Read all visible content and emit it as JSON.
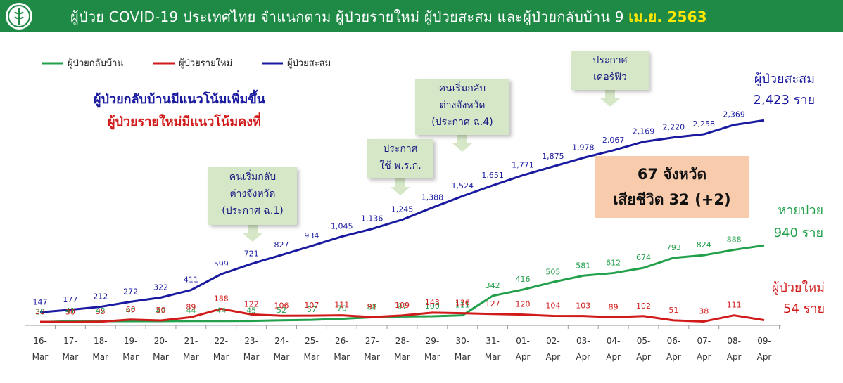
{
  "header": {
    "title_main": "ผู้ป่วย COVID-19 ประเทศไทย จำแนกตาม ผู้ป่วยรายใหม่ ผู้ป่วยสะสม  และผู้ป่วยกลับบ้าน   9",
    "title_date": "เม.ย. 2563",
    "bg_color": "#1f8a46",
    "logo_icon": "ministry-of-public-health-seal"
  },
  "messages": {
    "line1": "ผู้ป่วยกลับบ้านมีแนวโน้มเพิ่มขึ้น",
    "line2": "ผู้ป่วยรายใหม่มีแนวโน้มคงที่"
  },
  "callouts": {
    "c1": [
      "คนเริ่มกลับ",
      "ต่างจังหวัด",
      "(ประกาศ ฉ.1)"
    ],
    "c2": [
      "ประกาศ",
      "ใช้ พ.ร.ก."
    ],
    "c3": [
      "คนเริ่มกลับ",
      "ต่างจังหวัด",
      "(ประกาศ ฉ.4)"
    ],
    "c4": [
      "ประกาศ",
      "เคอร์ฟิว"
    ]
  },
  "stat_box": {
    "provinces": "67 จังหวัด",
    "deaths": "เสียชีวิต 32 (+2)"
  },
  "edge_labels": {
    "cumulative_title": "ผู้ป่วยสะสม",
    "cumulative_value": "2,423 ราย",
    "recovered_title": "หายป่วย",
    "recovered_value": "940 ราย",
    "new_title": "ผู้ป่วยใหม่",
    "new_value": "54 ราย"
  },
  "chart_data": {
    "type": "line",
    "categories": [
      "16-Mar",
      "17-Mar",
      "18-Mar",
      "19-Mar",
      "20-Mar",
      "21-Mar",
      "22-Mar",
      "23-Mar",
      "24-Mar",
      "25-Mar",
      "26-Mar",
      "27-Mar",
      "28-Mar",
      "29-Mar",
      "30-Mar",
      "31-Mar",
      "01-Apr",
      "02-Apr",
      "03-Apr",
      "04-Apr",
      "05-Apr",
      "06-Apr",
      "07-Apr",
      "08-Apr",
      "09-Apr"
    ],
    "series": [
      {
        "name": "ผู้ป่วยกลับบ้าน",
        "color": "#22a04b",
        "values": [
          30,
          41,
          42,
          42,
          42,
          44,
          44,
          45,
          52,
          57,
          70,
          88,
          97,
          100,
          111,
          342,
          416,
          505,
          581,
          612,
          674,
          793,
          824,
          888,
          940
        ],
        "labels": [
          "30",
          "41",
          "42",
          "42",
          "42",
          "44",
          "44",
          "45",
          "52",
          "57",
          "70",
          "88",
          "97",
          "100",
          "111",
          "342",
          "416",
          "505",
          "581",
          "612",
          "674",
          "793",
          "824",
          "888",
          ""
        ]
      },
      {
        "name": "ผู้ป่วยรายใหม่",
        "color": "#d11b1b",
        "values": [
          33,
          30,
          35,
          60,
          50,
          89,
          188,
          122,
          106,
          107,
          111,
          91,
          109,
          143,
          136,
          127,
          120,
          104,
          103,
          89,
          102,
          51,
          38,
          111,
          54
        ],
        "labels": [
          "33",
          "30",
          "35",
          "60",
          "50",
          "89",
          "188",
          "122",
          "106",
          "107",
          "111",
          "91",
          "109",
          "143",
          "136",
          "127",
          "120",
          "104",
          "103",
          "89",
          "102",
          "51",
          "38",
          "111",
          ""
        ]
      },
      {
        "name": "ผู้ป่วยสะสม",
        "color": "#1a1aa0",
        "values": [
          147,
          177,
          212,
          272,
          322,
          411,
          599,
          721,
          827,
          934,
          1045,
          1136,
          1245,
          1388,
          1524,
          1651,
          1771,
          1875,
          1978,
          2067,
          2169,
          2220,
          2258,
          2369,
          2423
        ],
        "labels": [
          "147",
          "177",
          "212",
          "272",
          "322",
          "411",
          "599",
          "721",
          "827",
          "934",
          "1,045",
          "1,136",
          "1,245",
          "1,388",
          "1,524",
          "1,651",
          "1,771",
          "1,875",
          "1,978",
          "2,067",
          "2,169",
          "2,220",
          "2,258",
          "2,369",
          ""
        ]
      }
    ],
    "ylim": [
      0,
      2750
    ],
    "legend_position": "top-left",
    "grid": false
  }
}
